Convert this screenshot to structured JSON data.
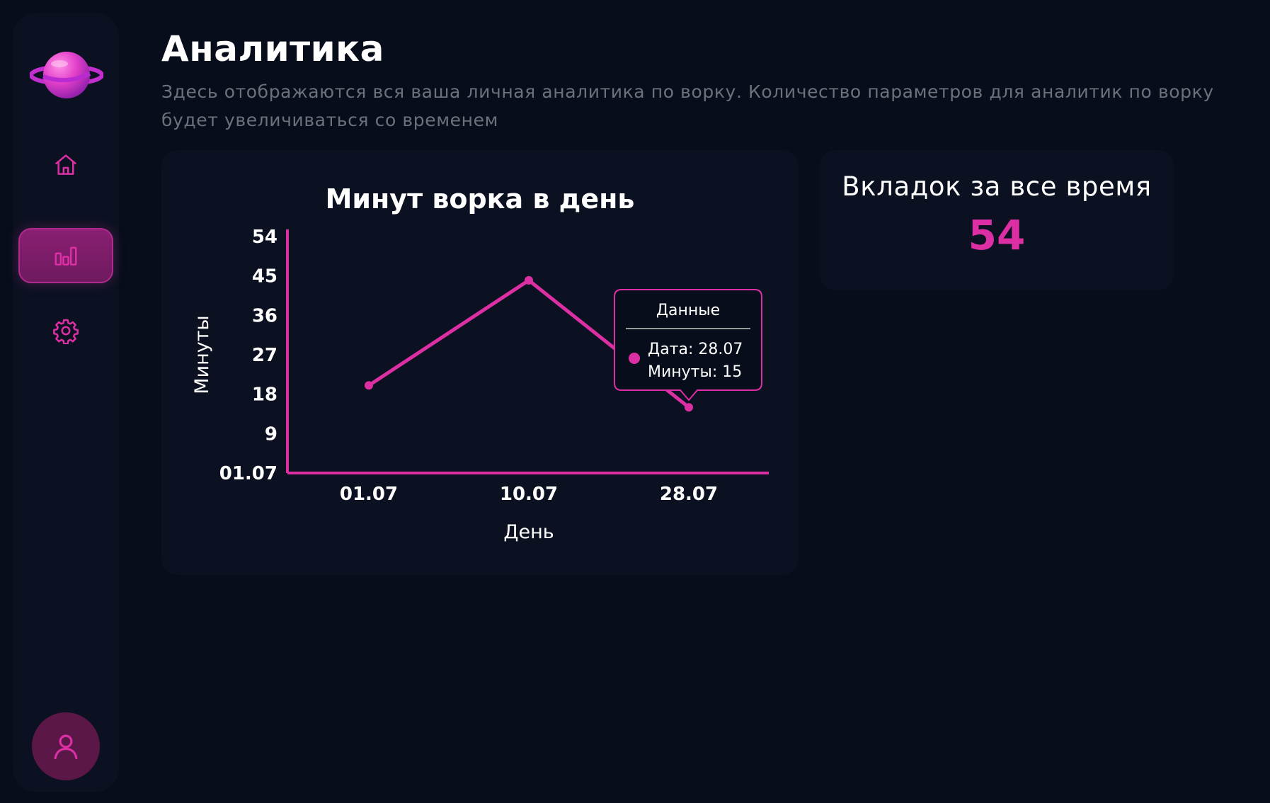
{
  "sidebar": {
    "logo_icon": "planet-icon",
    "items": [
      {
        "name": "home",
        "icon": "home-icon",
        "active": false
      },
      {
        "name": "analytics",
        "icon": "bar-chart-icon",
        "active": true
      },
      {
        "name": "settings",
        "icon": "gear-icon",
        "active": false
      }
    ],
    "profile_icon": "user-icon"
  },
  "header": {
    "title": "Аналитика",
    "description": "Здесь отображаются вся ваша личная аналитика по ворку. Количество параметров для аналитик по ворку будет увеличиваться со временем"
  },
  "stats": {
    "tabs_title": "Вкладок за все время",
    "tabs_value": "54"
  },
  "colors": {
    "accent": "#dd2fa4",
    "background": "#070d1b",
    "card": "#0b1120",
    "muted_text": "#6d717b"
  },
  "chart_data": {
    "type": "line",
    "title": "Минут ворка в день",
    "xlabel": "День",
    "ylabel": "Минуты",
    "categories": [
      "01.07",
      "10.07",
      "28.07"
    ],
    "values": [
      20,
      44,
      15
    ],
    "ylim": [
      0,
      54
    ],
    "y_ticks": [
      "01.07",
      "9",
      "18",
      "27",
      "36",
      "45",
      "54"
    ],
    "grid": false,
    "tooltip": {
      "title": "Данные",
      "date_line": "Дата: 28.07",
      "value_line": "Минуты: 15",
      "point_index": 2
    }
  }
}
